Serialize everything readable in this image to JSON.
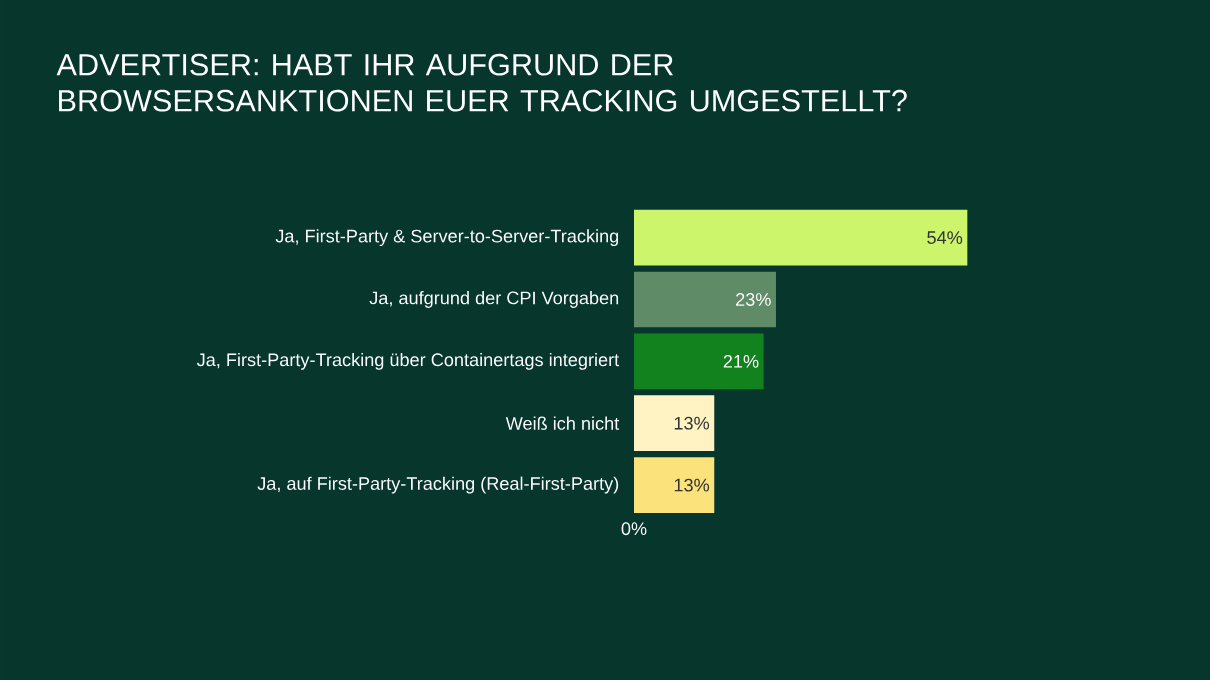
{
  "chart_data": {
    "type": "bar",
    "orientation": "horizontal",
    "title": "ADVERTISER: HABT IHR AUFGRUND DER BROWSERSANKTIONEN EUER TRACKING UMGESTELLT?",
    "categories": [
      "Ja, First-Party & Server-to-Server-Tracking",
      "Ja, aufgrund der CPI Vorgaben",
      "Ja, First-Party-Tracking über Containertags integriert",
      "Weiß ich nicht",
      "Ja, auf First-Party-Tracking (Real-First-Party)"
    ],
    "values": [
      54,
      23,
      21,
      13,
      13
    ],
    "colors": [
      "#ccf56b",
      "#5f8c66",
      "#12821f",
      "#fff3c4",
      "#fbe27a"
    ],
    "value_labels": [
      "54%",
      "23%",
      "21%",
      "13%",
      "13%"
    ],
    "annotations": [
      "0%"
    ]
  }
}
